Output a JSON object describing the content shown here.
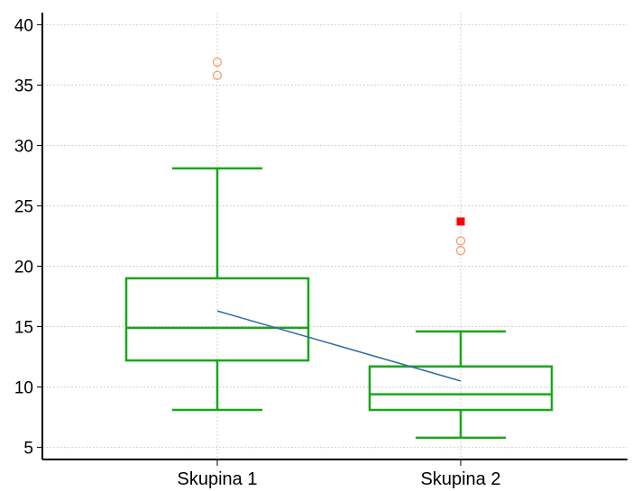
{
  "chart_data": {
    "type": "box",
    "title": "",
    "xlabel": "",
    "ylabel": "",
    "categories": [
      "Skupina 1",
      "Skupina 2"
    ],
    "ylim": [
      4,
      41
    ],
    "yticks": [
      5,
      10,
      15,
      20,
      25,
      30,
      35,
      40
    ],
    "grid": true,
    "box_color": "#1aa61a",
    "mean_line_color": "#2f6aa8",
    "outlier_color": "#f4a070",
    "far_outlier_color": "#ff0000",
    "grid_color": "#d0d0d0",
    "series": [
      {
        "category": "Skupina 1",
        "whisker_low": 8.1,
        "q1": 12.2,
        "median": 14.9,
        "q3": 19.0,
        "whisker_high": 28.1,
        "mean": 16.3,
        "outliers": [
          35.8,
          36.9
        ],
        "far_outliers": []
      },
      {
        "category": "Skupina 2",
        "whisker_low": 5.8,
        "q1": 8.1,
        "median": 9.4,
        "q3": 11.7,
        "whisker_high": 14.6,
        "mean": 10.5,
        "outliers": [
          21.3,
          22.1
        ],
        "far_outliers": [
          23.7
        ]
      }
    ]
  }
}
